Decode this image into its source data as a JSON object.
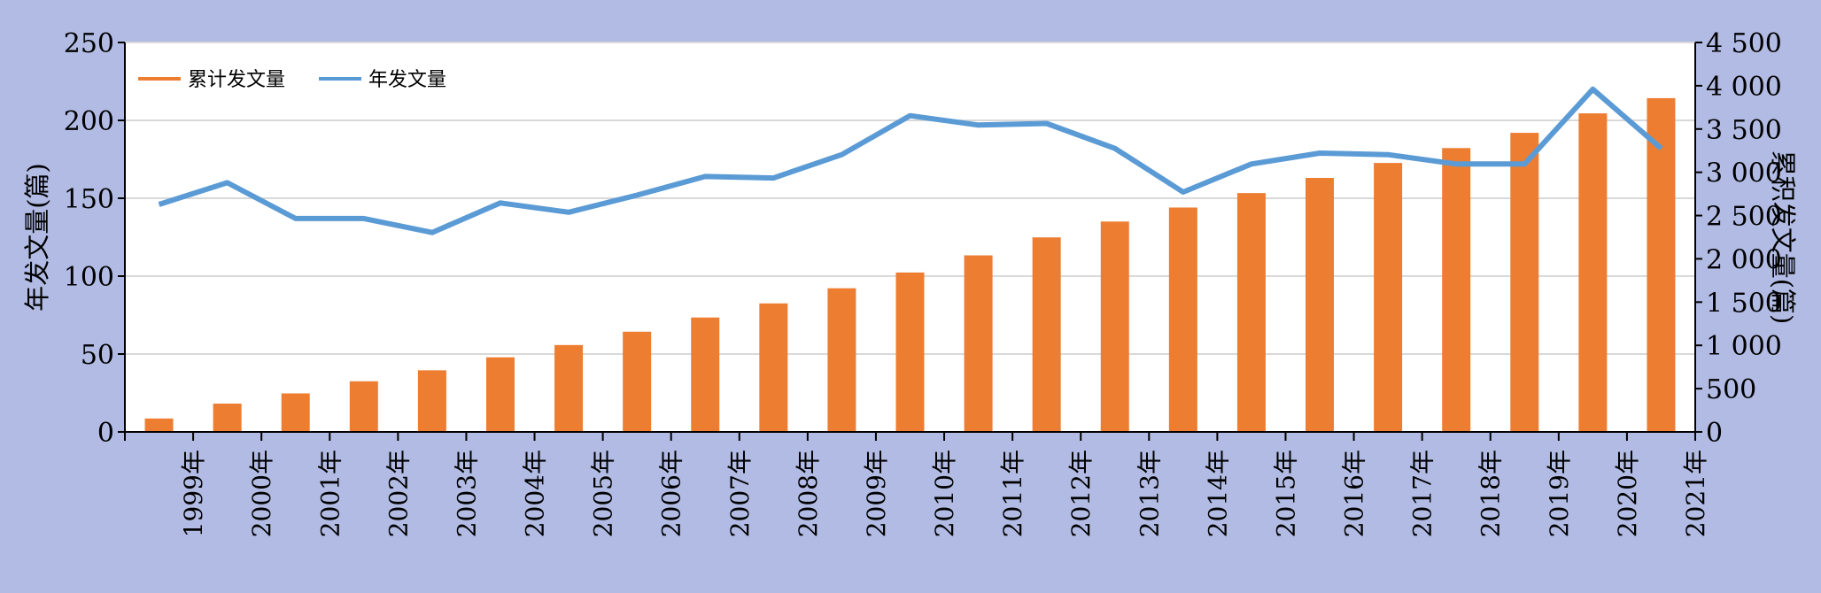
{
  "chart_data": {
    "type": "bar+line",
    "x_tick_labels": [
      "1999年",
      "2000年",
      "2001年",
      "2002年",
      "2003年",
      "2004年",
      "2005年",
      "2006年",
      "2007年",
      "2008年",
      "2009年",
      "2010年",
      "2011年",
      "2012年",
      "2013年",
      "2014年",
      "2015年",
      "2016年",
      "2017年",
      "2018年",
      "2019年",
      "2020年",
      "2021年"
    ],
    "series": [
      {
        "name": "累计发文量",
        "type": "bar",
        "axis": "right",
        "color": "#ed7d31",
        "values": [
          155,
          327,
          445,
          585,
          712,
          862,
          1004,
          1158,
          1322,
          1485,
          1660,
          1842,
          2040,
          2248,
          2431,
          2593,
          2760,
          2935,
          3108,
          3280,
          3456,
          3681,
          3857
        ]
      },
      {
        "name": "年发文量",
        "type": "line",
        "axis": "left",
        "color": "#5b9bd5",
        "values": [
          146,
          160,
          137,
          137,
          128,
          147,
          141,
          152,
          164,
          163,
          178,
          203,
          197,
          198,
          182,
          154,
          172,
          179,
          178,
          172,
          172,
          220,
          182
        ]
      }
    ],
    "y_left": {
      "label": "年发文量(篇)",
      "ylim": [
        0,
        250
      ],
      "ticks": [
        0,
        50,
        100,
        150,
        200,
        250
      ],
      "tick_labels": [
        "0",
        "50",
        "100",
        "150",
        "200",
        "250"
      ]
    },
    "y_right": {
      "label": "累积发文量(篇)",
      "ylim": [
        0,
        4500
      ],
      "ticks": [
        0,
        500,
        1000,
        1500,
        2000,
        2500,
        3000,
        3500,
        4000,
        4500
      ],
      "tick_labels": [
        "0",
        "500",
        "1 000",
        "1 500",
        "2 000",
        "2 500",
        "3 000",
        "3 500",
        "4 000",
        "4 500"
      ]
    },
    "grid": true,
    "legend_position": "top-left",
    "colors": {
      "background": "#b1bbe3",
      "plot_area": "#ffffff",
      "grid": "#d9d9d9"
    }
  }
}
